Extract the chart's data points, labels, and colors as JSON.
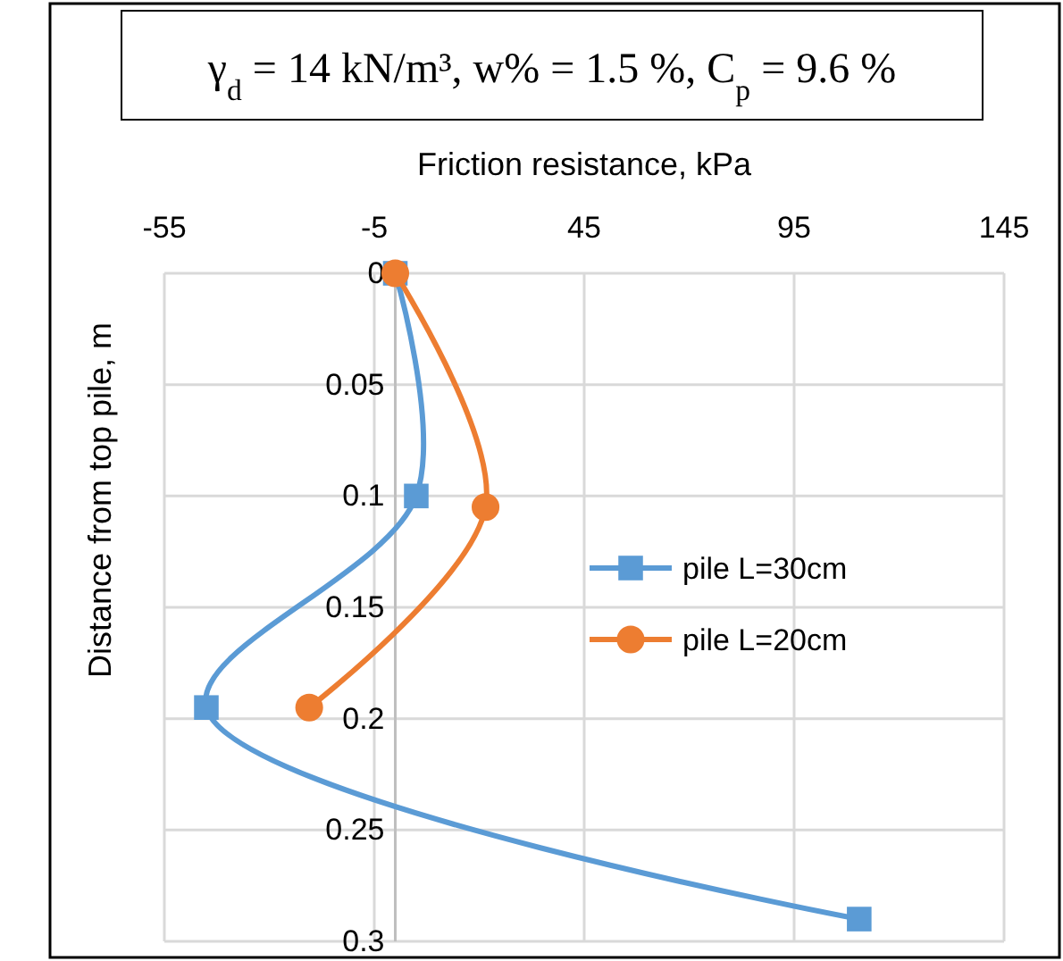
{
  "chart_data": {
    "type": "line",
    "title": "γ$_{d}$ = 14 kN/m³, w% = 1.5 %, C$_{p}$ = 9.6 %",
    "xlabel": "Friction resistance, kPa",
    "ylabel": "Distance from top pile, m",
    "xlim": [
      -55,
      145
    ],
    "xticks": [
      -55,
      -5,
      45,
      95,
      145
    ],
    "ylim": [
      0.3,
      0
    ],
    "yticks": [
      0,
      0.05,
      0.1,
      0.15,
      0.2,
      0.25,
      0.3
    ],
    "grid": true,
    "legend": "right",
    "series": [
      {
        "name": "pile L=30cm",
        "color": "#5b9bd5",
        "marker": "square",
        "x": [
          0,
          5,
          -45,
          110.5
        ],
        "values": [
          0,
          0.1,
          0.195,
          0.29
        ]
      },
      {
        "name": "pile L=20cm",
        "color": "#ed7d31",
        "marker": "circle",
        "x": [
          0,
          21.5,
          -20.5
        ],
        "values": [
          0,
          0.105,
          0.195
        ]
      }
    ]
  }
}
